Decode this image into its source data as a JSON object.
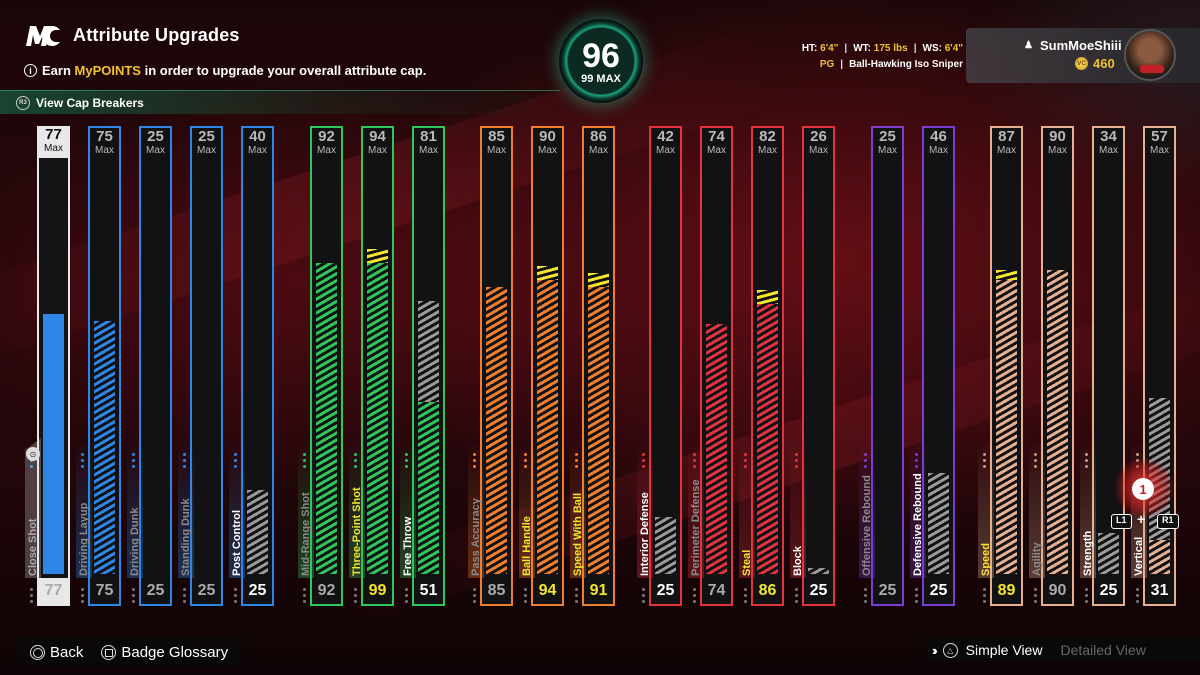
{
  "header": {
    "title": "Attribute Upgrades",
    "info_prefix": "Earn ",
    "info_highlight": "MyPOINTS",
    "info_suffix": " in order to upgrade your overall attribute cap.",
    "cap_breakers_label": "View Cap Breakers",
    "cap_breakers_button": "R3"
  },
  "overall": {
    "value": "96",
    "max_label": "99 MAX"
  },
  "player": {
    "ht_label": "HT:",
    "ht": "6'4\"",
    "wt_label": "WT:",
    "wt": "175 lbs",
    "ws_label": "WS:",
    "ws": "6'4\"",
    "position": "PG",
    "archetype": "Ball-Hawking Iso Sniper",
    "username": "SumMoeShiii",
    "vc": "460",
    "vc_icon": "VC"
  },
  "max_label": "Max",
  "colors": {
    "inside": "#2f86e6",
    "shooting": "#2fc65a",
    "playmaking": "#ef7e2f",
    "defense": "#e2343e",
    "rebounding": "#7a3fd0",
    "physical": "#e6b090",
    "upgrade": "#f5e62c",
    "locked": "#9a9a9a"
  },
  "attributes": [
    {
      "name": "Close Shot",
      "cap": "77",
      "value": "77",
      "group": "inside",
      "label_color": "#aaaaaa",
      "fill": 0.77,
      "upgrade": 0,
      "locked": false
    },
    {
      "name": "Driving Layup",
      "cap": "75",
      "value": "75",
      "group": "inside",
      "label_color": "#8a8a8a",
      "fill": 0.75,
      "upgrade": 0,
      "locked": false
    },
    {
      "name": "Driving Dunk",
      "cap": "25",
      "value": "25",
      "group": "inside",
      "label_color": "#8a8a8a",
      "fill": 0,
      "upgrade": 0,
      "locked": false
    },
    {
      "name": "Standing Dunk",
      "cap": "25",
      "value": "25",
      "group": "inside",
      "label_color": "#8a8a8a",
      "fill": 0,
      "upgrade": 0,
      "locked": false
    },
    {
      "name": "Post Control",
      "cap": "40",
      "value": "25",
      "group": "inside",
      "label_color": "#ffffff",
      "fill": 0,
      "upgrade": 0,
      "locked": 0.25
    },
    {
      "name": "Mid-Range Shot",
      "cap": "92",
      "value": "92",
      "group": "shooting",
      "label_color": "#8a8a8a",
      "fill": 0.92,
      "upgrade": 0,
      "locked": false
    },
    {
      "name": "Three-Point Shot",
      "cap": "94",
      "value": "99",
      "group": "shooting",
      "label_color": "#f5e62c",
      "fill": 0.92,
      "upgrade": 0.07,
      "locked": false
    },
    {
      "name": "Free Throw",
      "cap": "81",
      "value": "51",
      "group": "shooting",
      "label_color": "#ffffff",
      "fill": 0.51,
      "upgrade": 0,
      "locked": 0.3
    },
    {
      "name": "Pass Accuracy",
      "cap": "85",
      "value": "85",
      "group": "playmaking",
      "label_color": "#8a8a8a",
      "fill": 0.85,
      "upgrade": 0,
      "locked": false
    },
    {
      "name": "Ball Handle",
      "cap": "90",
      "value": "94",
      "group": "playmaking",
      "label_color": "#f5e62c",
      "fill": 0.87,
      "upgrade": 0.07,
      "locked": false
    },
    {
      "name": "Speed With Ball",
      "cap": "86",
      "value": "91",
      "group": "playmaking",
      "label_color": "#f5e62c",
      "fill": 0.85,
      "upgrade": 0.07,
      "locked": false
    },
    {
      "name": "Interior Defense",
      "cap": "42",
      "value": "25",
      "group": "defense",
      "label_color": "#ffffff",
      "fill": 0,
      "upgrade": 0,
      "locked": 0.17
    },
    {
      "name": "Perimeter Defense",
      "cap": "74",
      "value": "74",
      "group": "defense",
      "label_color": "#8a8a8a",
      "fill": 0.74,
      "upgrade": 0,
      "locked": false
    },
    {
      "name": "Steal",
      "cap": "82",
      "value": "86",
      "group": "defense",
      "label_color": "#f5e62c",
      "fill": 0.8,
      "upgrade": 0.07,
      "locked": false
    },
    {
      "name": "Block",
      "cap": "26",
      "value": "25",
      "group": "defense",
      "label_color": "#ffffff",
      "fill": 0,
      "upgrade": 0,
      "locked": 0.01
    },
    {
      "name": "Offensive Rebound",
      "cap": "25",
      "value": "25",
      "group": "rebounding",
      "label_color": "#8a8a8a",
      "fill": 0,
      "upgrade": 0,
      "locked": false
    },
    {
      "name": "Defensive Rebound",
      "cap": "46",
      "value": "25",
      "group": "rebounding",
      "label_color": "#ffffff",
      "fill": 0,
      "upgrade": 0,
      "locked": 0.3
    },
    {
      "name": "Speed",
      "cap": "87",
      "value": "89",
      "group": "physical",
      "label_color": "#f5e62c",
      "fill": 0.87,
      "upgrade": 0.05,
      "locked": false
    },
    {
      "name": "Agility",
      "cap": "90",
      "value": "90",
      "group": "physical",
      "label_color": "#8a8a8a",
      "fill": 0.9,
      "upgrade": 0,
      "locked": false
    },
    {
      "name": "Strength",
      "cap": "34",
      "value": "25",
      "group": "physical",
      "label_color": "#ffffff",
      "fill": 0,
      "upgrade": 0,
      "locked": 0.12
    },
    {
      "name": "Vertical",
      "cap": "57",
      "value": "31",
      "group": "physical",
      "label_color": "#ffffff",
      "fill": 0.1,
      "upgrade": 0,
      "locked": 0.42
    }
  ],
  "cursor": {
    "badge": "1",
    "left_button": "L1",
    "right_button": "R1",
    "plus": "+"
  },
  "footer": {
    "back_label": "Back",
    "glossary_label": "Badge Glossary",
    "simple_view_label": "Simple View",
    "detailed_view_label": "Detailed View"
  }
}
